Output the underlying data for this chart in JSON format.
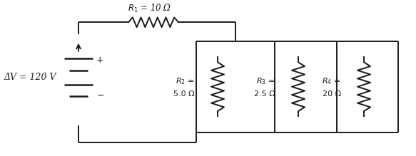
{
  "bg_color": "#ffffff",
  "line_color": "#1a1a1a",
  "line_width": 1.4,
  "figsize": [
    5.83,
    2.19
  ],
  "dpi": 100,
  "battery_label": "ΔV = 120 V",
  "R1_label": "$R_1$ = 10 Ω",
  "R2_line1": "$R_2$ =",
  "R2_line2": "5.0 Ω",
  "R3_line1": "$R_3$ =",
  "R3_line2": "2.5 Ω",
  "R4_line1": "$R_4$ =",
  "R4_line2": "20 Ω"
}
